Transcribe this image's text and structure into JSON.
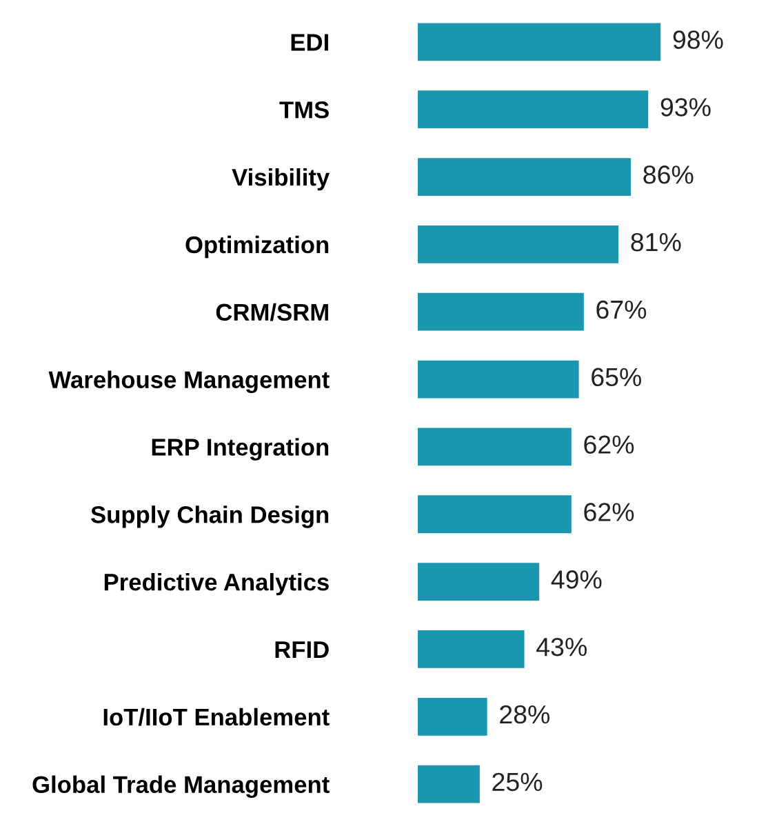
{
  "chart_data": {
    "type": "bar",
    "orientation": "horizontal",
    "categories": [
      "EDI",
      "TMS",
      "Visibility",
      "Optimization",
      "CRM/SRM",
      "Warehouse Management",
      "ERP Integration",
      "Supply Chain Design",
      "Predictive Analytics",
      "RFID",
      "IoT/IIoT Enablement",
      "Global Trade Management"
    ],
    "values": [
      98,
      93,
      86,
      81,
      67,
      65,
      62,
      62,
      49,
      43,
      28,
      25
    ],
    "value_labels": [
      "98%",
      "93%",
      "86%",
      "81%",
      "67%",
      "65%",
      "62%",
      "62%",
      "49%",
      "43%",
      "28%",
      "25%"
    ],
    "color": "#1a97ae",
    "tick_labels": "y",
    "grid": false,
    "legend": false
  }
}
